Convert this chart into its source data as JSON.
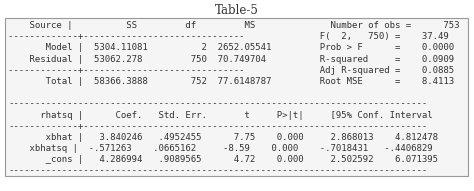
{
  "title": "Table-5",
  "bg_color": "#ffffff",
  "font_color": "#333333",
  "title_fontsize": 8.5,
  "table_fontsize": 6.5,
  "box_facecolor": "#f5f5f5",
  "box_edgecolor": "#999999",
  "full_table": [
    "    Source |          SS         df         MS              Number of obs =      753",
    "-------------+------------------------------              F(  2,   750) =    37.49",
    "       Model |  5304.11081          2  2652.05541         Prob > F      =    0.0000",
    "    Residual |  53062.278         750  70.749704          R-squared     =    0.0909",
    "-------------+------------------------------              Adj R-squared =    0.0885",
    "       Total |  58366.3888        752  77.6148787         Root MSE      =    8.4113",
    "",
    "------------------------------------------------------------------------------",
    "      rhatsq |      Coef.   Std. Err.       t     P>|t|     [95% Conf. Interval",
    "-------------+----------------------------------------------------------------",
    "       xbhat |   3.840246   .4952455      7.75    0.000     2.868013    4.812478",
    "    xbhatsq |  -.571263    .0665162     -8.59    0.000    -.7018431   -.4406829",
    "       _cons |   4.286994   .9089565      4.72    0.000     2.502592    6.071395",
    "------------------------------------------------------------------------------"
  ]
}
